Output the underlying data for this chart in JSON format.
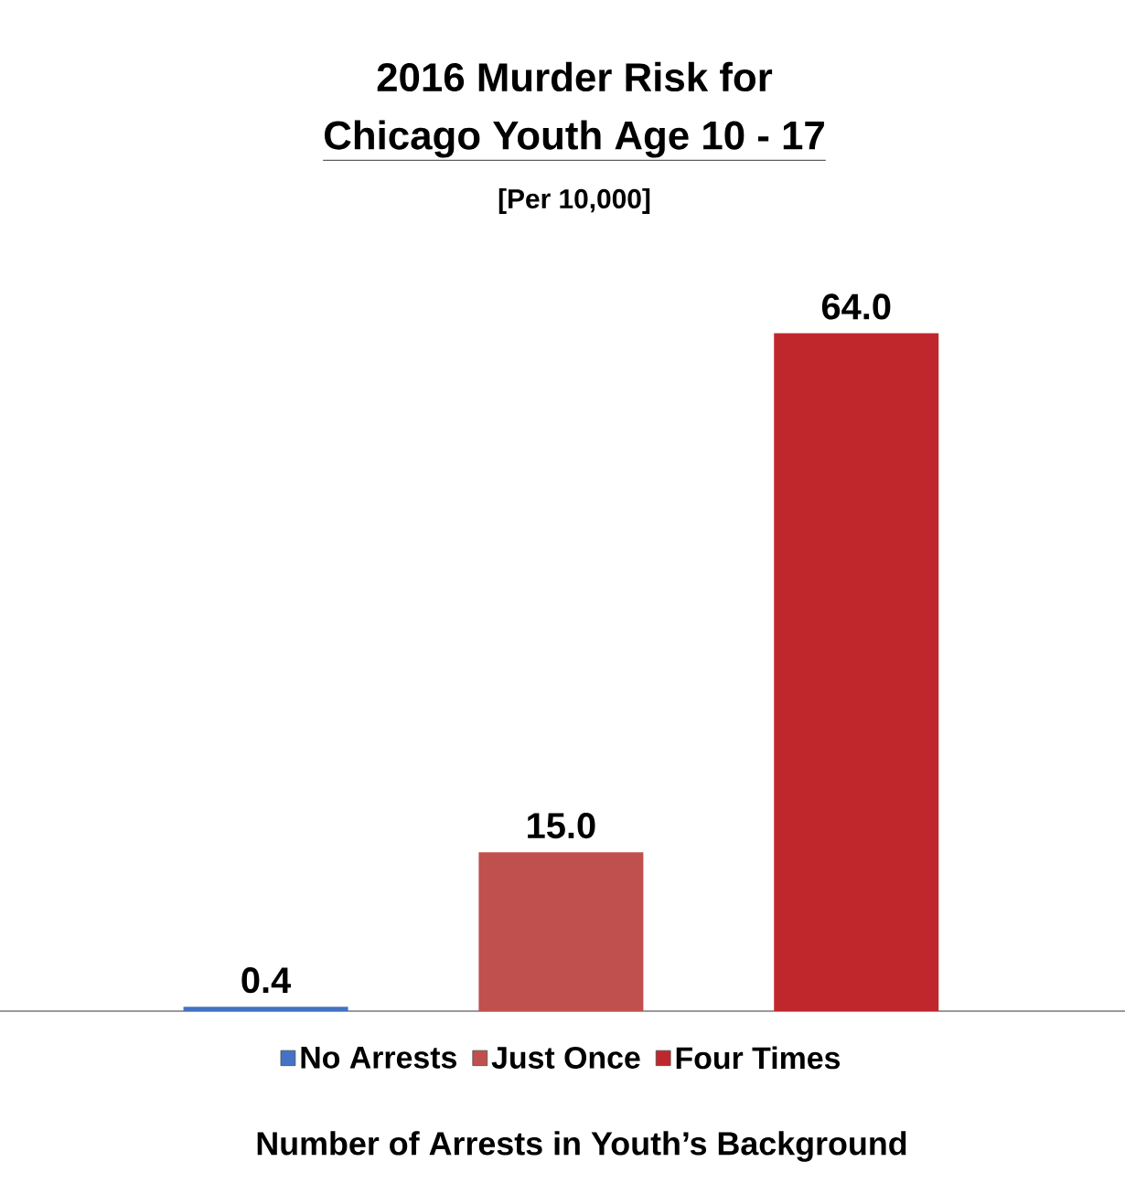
{
  "chart_data": {
    "type": "bar",
    "title": "2016 Murder Risk for",
    "subtitle": "Chicago Youth Age 10 - 17",
    "annotations": [
      "[Per 10,000]"
    ],
    "xlabel": "Number of Arrests in Youth’s Background",
    "categories": [
      null,
      null,
      null
    ],
    "series": [
      {
        "name": "No Arrests",
        "color": "#4472c4",
        "values": [
          0.4,
          null,
          null
        ],
        "value_labels": [
          "0.4",
          null,
          null
        ]
      },
      {
        "name": "Just Once",
        "color": "#c0504d",
        "values": [
          null,
          15.0,
          null
        ],
        "value_labels": [
          null,
          "15.0",
          null
        ]
      },
      {
        "name": "Four Times",
        "color": "#c0272d",
        "values": [
          null,
          null,
          64.0
        ],
        "value_labels": [
          null,
          null,
          "64.0"
        ]
      }
    ],
    "stacked": true,
    "legend": "bottom"
  }
}
